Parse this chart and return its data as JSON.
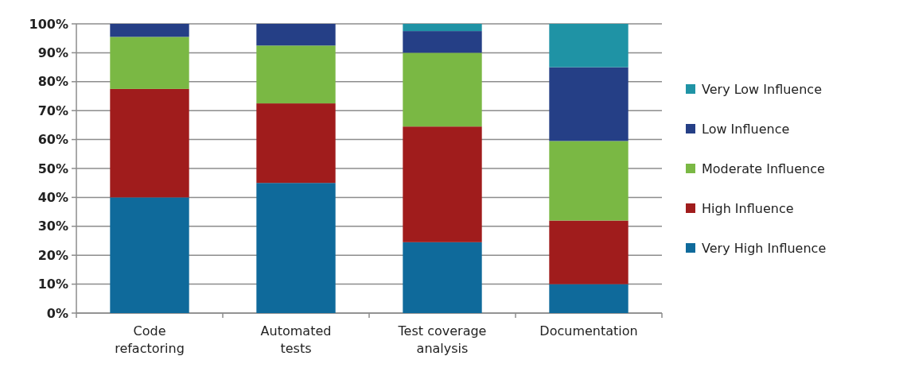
{
  "chart_data": {
    "type": "bar",
    "stacked": true,
    "categories": [
      "Code refactoring",
      "Automated tests",
      "Test coverage analysis",
      "Documentation"
    ],
    "series": [
      {
        "name": "Very High Influence",
        "color": "#0f6a9b",
        "values": [
          40,
          45,
          24.5,
          10
        ]
      },
      {
        "name": "High Influence",
        "color": "#a01c1c",
        "values": [
          37.5,
          27.5,
          40,
          22
        ]
      },
      {
        "name": "Moderate Influence",
        "color": "#7ab844",
        "values": [
          18,
          20,
          25.5,
          27.5
        ]
      },
      {
        "name": "Low Influence",
        "color": "#253f86",
        "values": [
          4.5,
          7.5,
          7.5,
          25.5
        ]
      },
      {
        "name": "Very Low Influence",
        "color": "#1f93a5",
        "values": [
          0,
          0,
          2.5,
          15
        ]
      }
    ],
    "ylim": [
      0,
      100
    ],
    "yticks": [
      {
        "value": 0,
        "label": "0%"
      },
      {
        "value": 10,
        "label": "10%"
      },
      {
        "value": 20,
        "label": "20%"
      },
      {
        "value": 30,
        "label": "30%"
      },
      {
        "value": 40,
        "label": "40%"
      },
      {
        "value": 50,
        "label": "50%"
      },
      {
        "value": 60,
        "label": "60%"
      },
      {
        "value": 70,
        "label": "70%"
      },
      {
        "value": 80,
        "label": "80%"
      },
      {
        "value": 90,
        "label": "90%"
      },
      {
        "value": 100,
        "label": "100%"
      }
    ],
    "grid": "y",
    "legend": "right"
  }
}
